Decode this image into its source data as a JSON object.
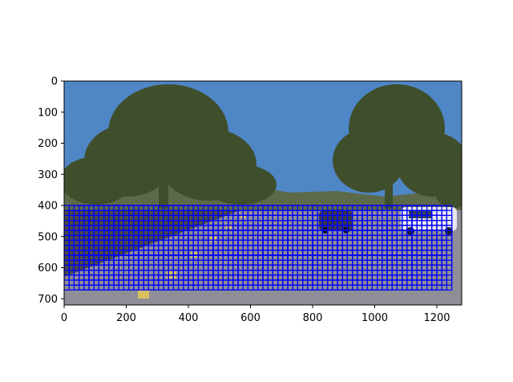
{
  "chart_data": {
    "type": "image",
    "title": "",
    "xlabel": "",
    "ylabel": "",
    "image_size": {
      "width": 1280,
      "height": 720
    },
    "x_range": [
      0,
      1280
    ],
    "y_range": [
      0,
      720
    ],
    "y_inverted": true,
    "x_ticks": [
      0,
      200,
      400,
      600,
      800,
      1000,
      1200
    ],
    "y_ticks": [
      0,
      100,
      200,
      300,
      400,
      500,
      600,
      700
    ],
    "grid": false,
    "legend": "none",
    "overlay": {
      "kind": "sliding-window-grid",
      "color": "#0000ff",
      "x_start": 0,
      "x_end": 1250,
      "y_start": 400,
      "y_end": 685,
      "window_size": [
        64,
        64
      ],
      "step": [
        16,
        16
      ]
    },
    "scene": {
      "sky_color": "#4f86c6",
      "tree_color": "#3f4f2c",
      "hill_color": "#5d6a4a",
      "road_color": "#8f8e96",
      "lane_color": "#d8c060",
      "car_color": "#e8e8ee"
    }
  }
}
